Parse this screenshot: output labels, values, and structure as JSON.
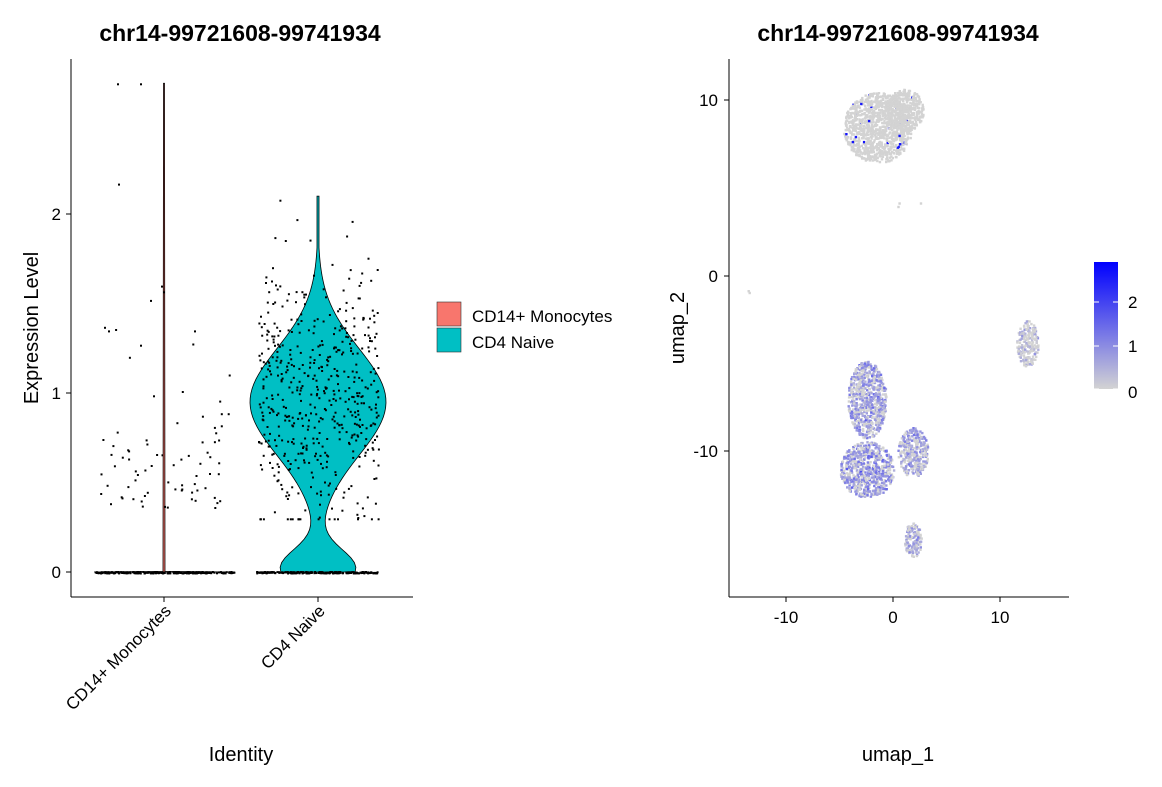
{
  "violin": {
    "title": "chr14-99721608-99741934",
    "ylabel": "Expression Level",
    "xlabel": "Identity",
    "ylim": [
      -0.15,
      2.75
    ],
    "yticks": [
      "0",
      "1",
      "2"
    ],
    "legend": [
      {
        "label": "CD14+ Monocytes",
        "color": "#F8766D"
      },
      {
        "label": "CD4 Naive",
        "color": "#00BFC4"
      }
    ]
  },
  "umap": {
    "title": "chr14-99721608-99741934",
    "xlabel": "umap_1",
    "ylabel": "umap_2",
    "xlim": [
      -15,
      16
    ],
    "ylim": [
      -18,
      12.5
    ],
    "xticks": [
      "-10",
      "0",
      "10"
    ],
    "yticks": [
      "10",
      "0",
      "-10"
    ],
    "colorbar": {
      "ticks": [
        "2",
        "1",
        "0"
      ],
      "low": "#D3D3D3",
      "high": "#0000FF",
      "range": [
        0,
        2.9
      ]
    }
  },
  "chart_data": [
    {
      "type": "violin",
      "title": "chr14-99721608-99741934",
      "xlabel": "Identity",
      "ylabel": "Expression Level",
      "categories": [
        "CD14+ Monocytes",
        "CD4 Naive"
      ],
      "ylim": [
        -0.15,
        2.75
      ],
      "series": [
        {
          "name": "CD14+ Monocytes",
          "color": "#F8766D",
          "max": 2.73,
          "mode": 0
        },
        {
          "name": "CD4 Naive",
          "color": "#00BFC4",
          "max": 2.1,
          "mode": 1.0
        }
      ],
      "legend": "right"
    },
    {
      "type": "scatter",
      "title": "chr14-99721608-99741934",
      "xlabel": "umap_1",
      "ylabel": "umap_2",
      "xlim": [
        -15,
        16
      ],
      "ylim": [
        -18,
        12.5
      ],
      "clusters": [
        {
          "cx": -1.5,
          "cy": 8.5,
          "rx": 3.2,
          "ry": 2.0,
          "expr": 0.0
        },
        {
          "cx": 1.0,
          "cy": 9.5,
          "rx": 1.8,
          "ry": 1.2,
          "expr": 0.0
        },
        {
          "cx": -2.5,
          "cy": -7.0,
          "rx": 1.8,
          "ry": 2.2,
          "expr": 0.8
        },
        {
          "cx": -2.5,
          "cy": -11.0,
          "rx": 2.5,
          "ry": 1.6,
          "expr": 0.9
        },
        {
          "cx": 1.8,
          "cy": -10.0,
          "rx": 1.4,
          "ry": 1.4,
          "expr": 0.7
        },
        {
          "cx": 1.8,
          "cy": -15.0,
          "rx": 0.8,
          "ry": 1.0,
          "expr": 0.5
        },
        {
          "cx": 12.5,
          "cy": -3.8,
          "rx": 1.0,
          "ry": 1.3,
          "expr": 0.3
        }
      ]
    }
  ]
}
